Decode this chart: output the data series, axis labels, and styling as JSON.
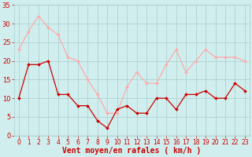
{
  "hours": [
    0,
    1,
    2,
    3,
    4,
    5,
    6,
    7,
    8,
    9,
    10,
    11,
    12,
    13,
    14,
    15,
    16,
    17,
    18,
    19,
    20,
    21,
    22,
    23
  ],
  "vent_moyen": [
    10,
    19,
    19,
    20,
    11,
    11,
    8,
    8,
    4,
    2,
    7,
    8,
    6,
    6,
    10,
    10,
    7,
    11,
    11,
    12,
    10,
    10,
    14,
    12
  ],
  "rafales": [
    23,
    28,
    32,
    29,
    27,
    21,
    20,
    15,
    11,
    6,
    6,
    13,
    17,
    14,
    14,
    19,
    23,
    17,
    20,
    23,
    21,
    21,
    21,
    20
  ],
  "color_moyen": "#cc0000",
  "color_rafales": "#ffaaaa",
  "bg_color": "#d0eeee",
  "grid_color": "#aacccc",
  "xlabel": "Vent moyen/en rafales ( km/h )",
  "xlabel_color": "#cc0000",
  "xlabel_fontsize": 7,
  "tick_color": "#cc0000",
  "tick_fontsize": 5.5,
  "ytick_fontsize": 6,
  "ylim": [
    0,
    35
  ],
  "yticks": [
    0,
    5,
    10,
    15,
    20,
    25,
    30,
    35
  ],
  "marker_size": 2.0,
  "linewidth": 0.9
}
